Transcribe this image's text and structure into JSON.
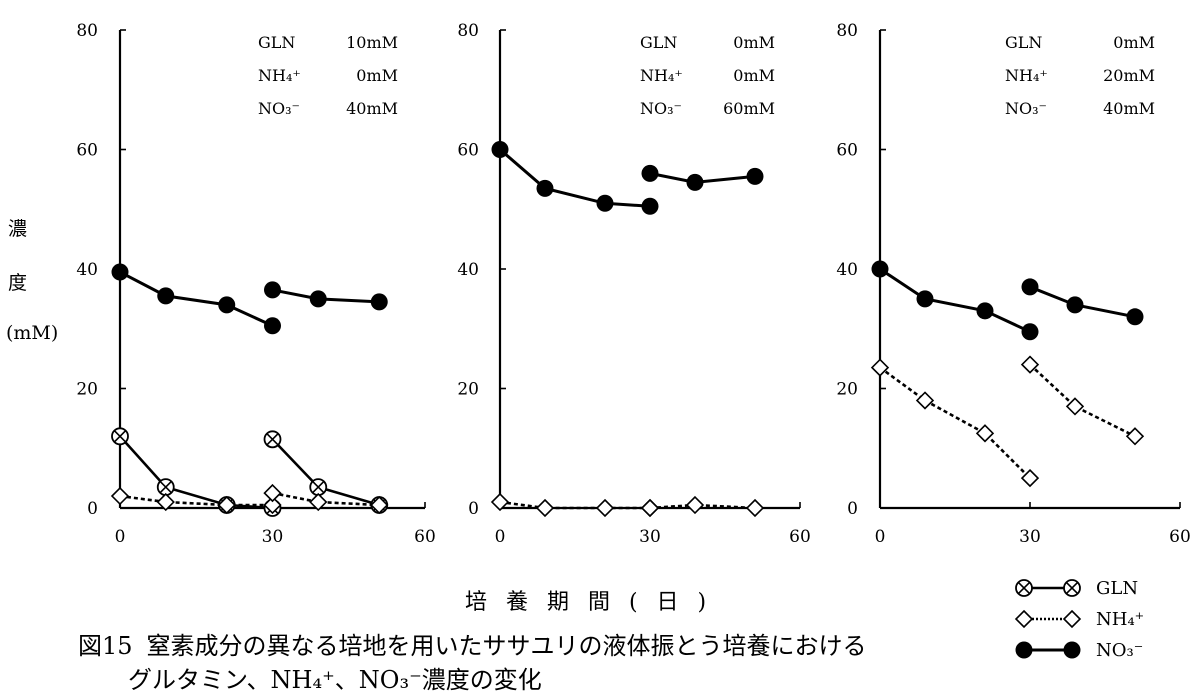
{
  "chart_data": [
    {
      "type": "line",
      "conditions": [
        {
          "name": "GLN",
          "value": "10mM"
        },
        {
          "name": "NH₄⁺",
          "value": "0mM"
        },
        {
          "name": "NO₃⁻",
          "value": "40mM"
        }
      ],
      "xlim": [
        0,
        60
      ],
      "ylim": [
        0,
        80
      ],
      "xticks": [
        "0",
        "30",
        "60"
      ],
      "yticks": [
        "0",
        "20",
        "40",
        "60",
        "80"
      ],
      "series": [
        {
          "key": "NO3",
          "segments": [
            [
              [
                0,
                39.5
              ],
              [
                9,
                35.5
              ],
              [
                21,
                34
              ],
              [
                30,
                30.5
              ]
            ],
            [
              [
                30,
                36.5
              ],
              [
                39,
                35
              ],
              [
                51,
                34.5
              ]
            ]
          ]
        },
        {
          "key": "GLN",
          "segments": [
            [
              [
                0,
                12
              ],
              [
                9,
                3.5
              ],
              [
                21,
                0.5
              ],
              [
                30,
                0
              ]
            ],
            [
              [
                30,
                11.5
              ],
              [
                39,
                3.5
              ],
              [
                51,
                0.5
              ]
            ]
          ]
        },
        {
          "key": "NH4",
          "segments": [
            [
              [
                0,
                2
              ],
              [
                9,
                1
              ],
              [
                21,
                0.5
              ],
              [
                30,
                0.5
              ]
            ],
            [
              [
                30,
                2.5
              ],
              [
                39,
                1
              ],
              [
                51,
                0.5
              ]
            ]
          ]
        }
      ]
    },
    {
      "type": "line",
      "conditions": [
        {
          "name": "GLN",
          "value": "0mM"
        },
        {
          "name": "NH₄⁺",
          "value": "0mM"
        },
        {
          "name": "NO₃⁻",
          "value": "60mM"
        }
      ],
      "xlim": [
        0,
        60
      ],
      "ylim": [
        0,
        80
      ],
      "xticks": [
        "0",
        "30",
        "60"
      ],
      "yticks": [
        "0",
        "20",
        "40",
        "60",
        "80"
      ],
      "series": [
        {
          "key": "NO3",
          "segments": [
            [
              [
                0,
                60
              ],
              [
                9,
                53.5
              ],
              [
                21,
                51
              ],
              [
                30,
                50.5
              ]
            ],
            [
              [
                30,
                56
              ],
              [
                39,
                54.5
              ],
              [
                51,
                55.5
              ]
            ]
          ]
        },
        {
          "key": "NH4",
          "segments": [
            [
              [
                0,
                1
              ],
              [
                9,
                0
              ],
              [
                21,
                0
              ],
              [
                30,
                0
              ]
            ],
            [
              [
                30,
                0
              ],
              [
                39,
                0.5
              ],
              [
                51,
                0
              ]
            ]
          ]
        }
      ]
    },
    {
      "type": "line",
      "conditions": [
        {
          "name": "GLN",
          "value": "0mM"
        },
        {
          "name": "NH₄⁺",
          "value": "20mM"
        },
        {
          "name": "NO₃⁻",
          "value": "40mM"
        }
      ],
      "xlim": [
        0,
        60
      ],
      "ylim": [
        0,
        80
      ],
      "xticks": [
        "0",
        "30",
        "60"
      ],
      "yticks": [
        "0",
        "20",
        "40",
        "60",
        "80"
      ],
      "series": [
        {
          "key": "NO3",
          "segments": [
            [
              [
                0,
                40
              ],
              [
                9,
                35
              ],
              [
                21,
                33
              ],
              [
                30,
                29.5
              ]
            ],
            [
              [
                30,
                37
              ],
              [
                39,
                34
              ],
              [
                51,
                32
              ]
            ]
          ]
        },
        {
          "key": "NH4",
          "segments": [
            [
              [
                0,
                23.5
              ],
              [
                9,
                18
              ],
              [
                21,
                12.5
              ],
              [
                30,
                5
              ]
            ],
            [
              [
                30,
                24
              ],
              [
                39,
                17
              ],
              [
                51,
                12
              ]
            ]
          ]
        }
      ]
    }
  ],
  "axis": {
    "ylabel_lines": [
      "濃",
      "度",
      "(mM)"
    ],
    "xlabel": "培 養 期 間 ( 日 )"
  },
  "legend": [
    {
      "key": "GLN",
      "label": "GLN",
      "style": "otimes-solid"
    },
    {
      "key": "NH4",
      "label": "NH₄⁺",
      "style": "diamond-dotted"
    },
    {
      "key": "NO3",
      "label": "NO₃⁻",
      "style": "filled-solid"
    }
  ],
  "caption": {
    "number": "図15",
    "line1": "窒素成分の異なる培地を用いたササユリの液体振とう培養における",
    "line2": "グルタミン、NH₄⁺、NO₃⁻濃度の変化"
  }
}
